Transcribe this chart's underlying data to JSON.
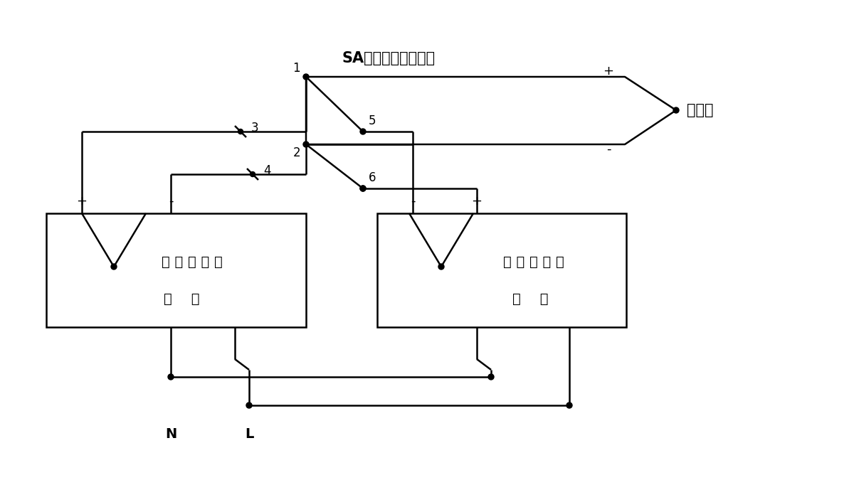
{
  "bg_color": "#ffffff",
  "line_color": "#000000",
  "text_color": "#000000",
  "sa_label": "SA双刀双掷钮子开关",
  "thermocouple_label": "热电偶",
  "device1_label1": "被 测 温 控 仪",
  "device1_label2": "中    相",
  "device2_label1": "标 准 温 控 仪",
  "device2_label2": "中    相",
  "n_label": "N",
  "l_label": "L",
  "figsize": [
    12.0,
    6.75
  ],
  "dpi": 100
}
